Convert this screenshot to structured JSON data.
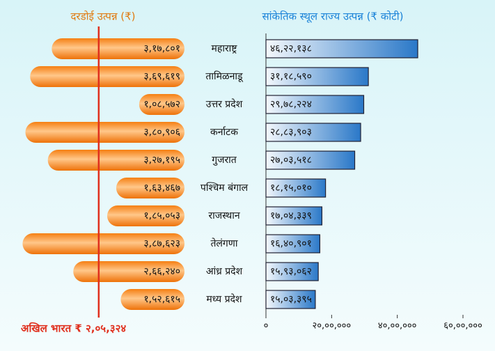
{
  "chart_data": [
    {
      "type": "pill-bar",
      "title": "दरडोई उत्पन्न (₹)",
      "color": "#f07a10",
      "values": [
        317801,
        369619,
        108572,
        380906,
        327195,
        163467,
        185053,
        387623,
        266240,
        152615
      ],
      "value_labels": [
        "३,१७,८०१",
        "३,६९,६१९",
        "१,०८,५७२",
        "३,८०,९०६",
        "३,२७,१९५",
        "१,६३,४६७",
        "१,८५,०५३",
        "३,८७,६२३",
        "२,६६,२४०",
        "१,५२,६१५"
      ],
      "xlim": [
        0,
        400000
      ],
      "reference": {
        "value": 205324,
        "label": "अखिल भारत ₹ २,०५,३२४",
        "color": "#e0301e"
      }
    },
    {
      "type": "bar",
      "title": "सांकेतिक स्थूल राज्य उत्पन्न (₹ कोटी)",
      "color": "#2a78c8",
      "categories": [
        "महाराष्ट्र",
        "तामिळनाडू",
        "उत्तर प्रदेश",
        "कर्नाटक",
        "गुजरात",
        "पश्चिम बंगाल",
        "राजस्थान",
        "तेलंगणा",
        "आंध्र प्रदेश",
        "मध्य प्रदेश"
      ],
      "values": [
        4622138,
        3118590,
        2978224,
        2883903,
        2703518,
        1815010,
        1704339,
        1640901,
        1593062,
        1503395
      ],
      "value_labels": [
        "४६,२२,१३८",
        "३१,१८,५९०",
        "२९,७८,२२४",
        "२८,८३,९०३",
        "२७,०३,५१८",
        "१८,१५,०१०",
        "१७,०४,३३९",
        "१६,४०,९०१",
        "१५,९३,०६२",
        "१५,०३,३९५"
      ],
      "xlim": [
        0,
        6000000
      ],
      "xticks": [
        {
          "value": 0,
          "label": "०"
        },
        {
          "value": 2000000,
          "label": "२०,००,०००"
        },
        {
          "value": 4000000,
          "label": "४०,००,०००"
        },
        {
          "value": 6000000,
          "label": "६०,००,०००"
        }
      ]
    }
  ]
}
